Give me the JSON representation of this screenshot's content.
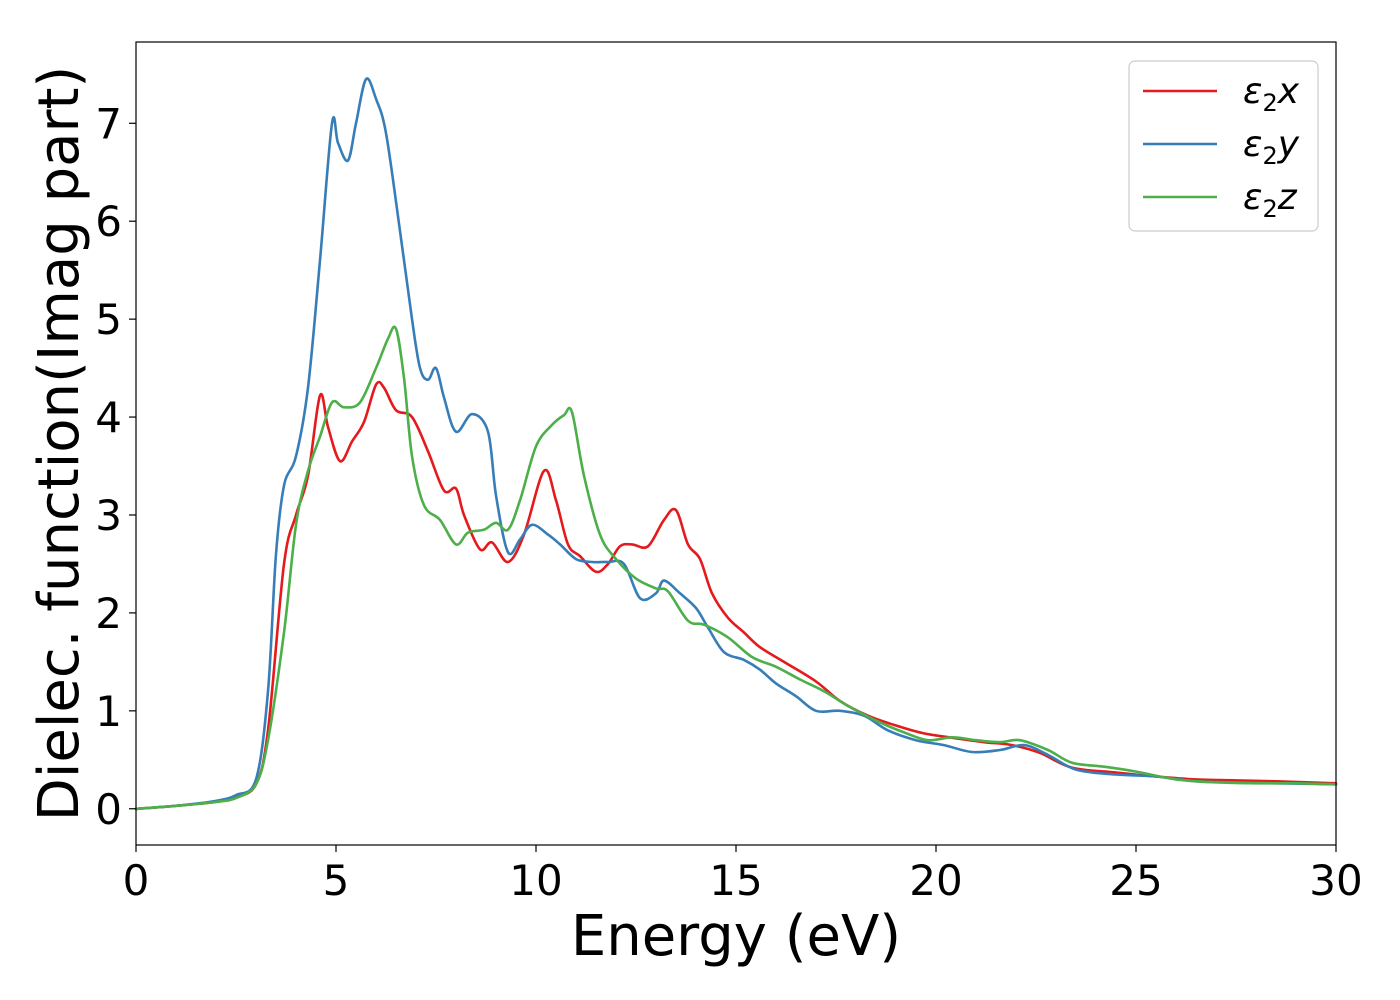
{
  "chart_data": {
    "type": "line",
    "title": "",
    "xlabel": "Energy (eV)",
    "ylabel": "Dielec. function(Imag part)",
    "xlim": [
      0,
      30
    ],
    "ylim": [
      -0.37,
      7.83
    ],
    "xticks": [
      "0",
      "5",
      "10",
      "15",
      "20",
      "25",
      "30"
    ],
    "yticks": [
      "0",
      "1",
      "2",
      "3",
      "4",
      "5",
      "6",
      "7"
    ],
    "grid": false,
    "legend_position": "top-right",
    "series": [
      {
        "name": "ε2x",
        "legend": {
          "base": "ε",
          "sub": "2",
          "suffix": "x"
        },
        "color": "#e41a1c",
        "x": [
          0,
          1,
          2,
          2.5,
          3,
          3.3,
          3.7,
          4.0,
          4.3,
          4.6,
          4.8,
          5.1,
          5.4,
          5.7,
          6.0,
          6.2,
          6.5,
          6.9,
          7.3,
          7.7,
          8.0,
          8.2,
          8.6,
          8.9,
          9.3,
          9.7,
          10.2,
          10.5,
          10.8,
          11.1,
          11.5,
          11.8,
          12.1,
          12.4,
          12.8,
          13.2,
          13.5,
          13.8,
          14.1,
          14.4,
          14.8,
          15.2,
          15.6,
          16.2,
          17.0,
          17.6,
          18.3,
          19.0,
          19.7,
          20.5,
          21.2,
          21.9,
          22.6,
          23.4,
          24.5,
          25.5,
          26.5,
          27.5,
          28.5,
          30
        ],
        "y": [
          0,
          0.03,
          0.07,
          0.12,
          0.25,
          0.8,
          2.5,
          3.0,
          3.4,
          4.22,
          3.9,
          3.55,
          3.75,
          3.95,
          4.33,
          4.3,
          4.07,
          4.0,
          3.65,
          3.25,
          3.27,
          3.0,
          2.65,
          2.72,
          2.52,
          2.8,
          3.45,
          3.15,
          2.7,
          2.58,
          2.42,
          2.5,
          2.68,
          2.7,
          2.68,
          2.95,
          3.05,
          2.7,
          2.55,
          2.2,
          1.95,
          1.8,
          1.65,
          1.5,
          1.3,
          1.1,
          0.95,
          0.85,
          0.77,
          0.72,
          0.68,
          0.65,
          0.57,
          0.42,
          0.37,
          0.33,
          0.3,
          0.29,
          0.28,
          0.26
        ]
      },
      {
        "name": "ε2y",
        "legend": {
          "base": "ε",
          "sub": "2",
          "suffix": "y"
        },
        "color": "#377eb8",
        "x": [
          0,
          1,
          2,
          2.5,
          3,
          3.3,
          3.5,
          3.7,
          4.0,
          4.3,
          4.6,
          4.9,
          5.05,
          5.3,
          5.5,
          5.75,
          6.0,
          6.25,
          6.6,
          6.9,
          7.1,
          7.3,
          7.5,
          7.7,
          8.0,
          8.4,
          8.8,
          9.0,
          9.3,
          9.6,
          9.9,
          10.3,
          10.6,
          11.0,
          11.4,
          11.8,
          12.2,
          12.6,
          13.0,
          13.2,
          13.6,
          14.0,
          14.3,
          14.7,
          15.2,
          15.6,
          16.0,
          16.5,
          17.0,
          17.6,
          18.2,
          18.8,
          19.5,
          20.2,
          20.9,
          21.6,
          22.2,
          22.8,
          23.5,
          24.5,
          25.5,
          26.5,
          27.5,
          28.5,
          30
        ],
        "y": [
          0,
          0.03,
          0.08,
          0.14,
          0.3,
          1.2,
          2.6,
          3.3,
          3.6,
          4.3,
          5.6,
          7.0,
          6.8,
          6.62,
          7.0,
          7.45,
          7.25,
          6.9,
          5.9,
          5.0,
          4.5,
          4.38,
          4.5,
          4.2,
          3.85,
          4.03,
          3.85,
          3.2,
          2.62,
          2.75,
          2.9,
          2.8,
          2.7,
          2.55,
          2.52,
          2.52,
          2.5,
          2.15,
          2.2,
          2.33,
          2.2,
          2.05,
          1.85,
          1.6,
          1.52,
          1.42,
          1.28,
          1.15,
          1.0,
          1.0,
          0.95,
          0.8,
          0.7,
          0.65,
          0.58,
          0.6,
          0.65,
          0.55,
          0.4,
          0.35,
          0.33,
          0.28,
          0.27,
          0.26,
          0.25
        ]
      },
      {
        "name": "ε2z",
        "legend": {
          "base": "ε",
          "sub": "2",
          "suffix": "z"
        },
        "color": "#4daf4a",
        "x": [
          0,
          1,
          2,
          2.5,
          3,
          3.3,
          3.7,
          4.0,
          4.3,
          4.6,
          4.9,
          5.2,
          5.6,
          6.0,
          6.3,
          6.5,
          6.7,
          6.9,
          7.2,
          7.6,
          8.0,
          8.3,
          8.7,
          9.0,
          9.3,
          9.6,
          10.0,
          10.4,
          10.7,
          10.9,
          11.2,
          11.6,
          12.0,
          12.5,
          13.0,
          13.3,
          13.8,
          14.2,
          14.8,
          15.4,
          16.0,
          16.6,
          17.2,
          17.8,
          18.5,
          19.2,
          19.8,
          20.4,
          21.0,
          21.6,
          22.1,
          22.8,
          23.4,
          24.2,
          25.0,
          26.0,
          27.0,
          28.0,
          29.0,
          30
        ],
        "y": [
          0,
          0.03,
          0.07,
          0.11,
          0.25,
          0.7,
          1.8,
          2.9,
          3.45,
          3.8,
          4.15,
          4.1,
          4.15,
          4.5,
          4.8,
          4.9,
          4.4,
          3.6,
          3.1,
          2.95,
          2.7,
          2.82,
          2.85,
          2.92,
          2.85,
          3.15,
          3.7,
          3.92,
          4.02,
          4.05,
          3.4,
          2.8,
          2.55,
          2.35,
          2.25,
          2.22,
          1.92,
          1.88,
          1.75,
          1.55,
          1.45,
          1.32,
          1.2,
          1.05,
          0.9,
          0.78,
          0.7,
          0.73,
          0.7,
          0.68,
          0.7,
          0.6,
          0.47,
          0.43,
          0.38,
          0.3,
          0.27,
          0.26,
          0.26,
          0.25
        ]
      }
    ]
  }
}
